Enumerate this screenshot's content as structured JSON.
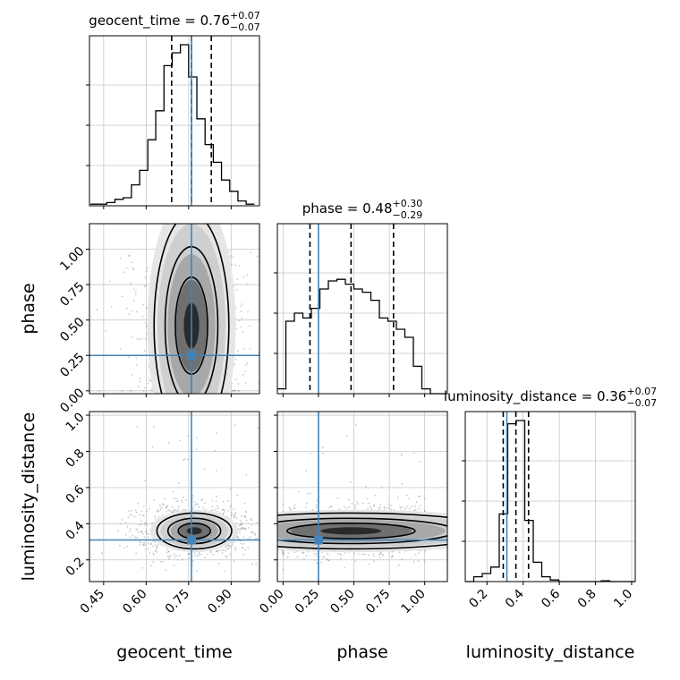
{
  "chart_data": {
    "type": "corner",
    "parameters": [
      "geocent_time",
      "phase",
      "luminosity_distance"
    ],
    "truths": {
      "geocent_time": 0.76,
      "phase": 0.25,
      "luminosity_distance": 0.31
    },
    "colors": {
      "truth": "#4682b4",
      "hist": "#000000",
      "grid": "#c8c8c8",
      "points": "#888888"
    },
    "grid": true,
    "marginals": [
      {
        "parameter": "geocent_time",
        "title_base": "geocent_time = 0.76",
        "title_plus": "+0.07",
        "title_minus": "−0.07",
        "xlim": [
          0.4,
          1.0
        ],
        "quantiles": [
          0.69,
          0.76,
          0.83
        ],
        "bin_edges": [
          0.403,
          0.432,
          0.461,
          0.49,
          0.519,
          0.548,
          0.577,
          0.606,
          0.634,
          0.663,
          0.692,
          0.721,
          0.75,
          0.779,
          0.808,
          0.837,
          0.866,
          0.895,
          0.924,
          0.953,
          0.982
        ],
        "counts": [
          0.01,
          0.01,
          0.02,
          0.04,
          0.05,
          0.13,
          0.22,
          0.41,
          0.59,
          0.87,
          0.95,
          1.0,
          0.8,
          0.54,
          0.38,
          0.27,
          0.16,
          0.09,
          0.03,
          0.01
        ]
      },
      {
        "parameter": "phase",
        "title_base": "phase = 0.48",
        "title_plus": "+0.30",
        "title_minus": "−0.29",
        "xlim": [
          -0.04,
          1.16
        ],
        "quantiles": [
          0.19,
          0.48,
          0.78
        ],
        "bin_edges": [
          -0.04,
          0.02,
          0.08,
          0.14,
          0.2,
          0.26,
          0.32,
          0.38,
          0.44,
          0.5,
          0.56,
          0.62,
          0.68,
          0.74,
          0.8,
          0.86,
          0.92,
          0.98,
          1.04,
          1.1,
          1.16
        ],
        "counts": [
          0.03,
          0.45,
          0.5,
          0.47,
          0.53,
          0.65,
          0.7,
          0.71,
          0.68,
          0.65,
          0.63,
          0.58,
          0.47,
          0.45,
          0.4,
          0.35,
          0.17,
          0.03,
          0.0,
          0.0
        ]
      },
      {
        "parameter": "luminosity_distance",
        "title_base": "luminosity_distance = 0.36",
        "title_plus": "+0.07",
        "title_minus": "−0.07",
        "xlim": [
          0.08,
          1.02
        ],
        "quantiles": [
          0.29,
          0.36,
          0.43
        ],
        "bin_edges": [
          0.08,
          0.127,
          0.174,
          0.221,
          0.268,
          0.315,
          0.362,
          0.409,
          0.456,
          0.503,
          0.55,
          0.597,
          0.644,
          0.691,
          0.738,
          0.785,
          0.832,
          0.879,
          0.926,
          0.973,
          1.02
        ],
        "counts": [
          0.0,
          0.03,
          0.05,
          0.09,
          0.42,
          0.98,
          1.0,
          0.38,
          0.12,
          0.03,
          0.01,
          0.0,
          0.0,
          0.0,
          0.0,
          0.0,
          0.005,
          0.0,
          0.0,
          0.0
        ]
      }
    ],
    "panels": [
      {
        "x": "geocent_time",
        "y": "phase",
        "center": [
          0.76,
          0.46
        ],
        "spread": [
          0.06,
          0.24
        ],
        "sample_count": 1100
      },
      {
        "x": "geocent_time",
        "y": "luminosity_distance",
        "center": [
          0.77,
          0.36
        ],
        "spread": [
          0.06,
          0.045
        ],
        "sample_count": 1100
      },
      {
        "x": "phase",
        "y": "luminosity_distance",
        "center": [
          0.48,
          0.36
        ],
        "spread": [
          0.28,
          0.045
        ],
        "sample_count": 1100
      }
    ],
    "axes": {
      "geocent_time": {
        "label": "geocent_time",
        "lim": [
          0.4,
          1.0
        ],
        "ticks": [
          0.45,
          0.6,
          0.75,
          0.9
        ],
        "tick_labels": [
          "0.45",
          "0.60",
          "0.75",
          "0.90"
        ]
      },
      "phase_x": {
        "label": "phase",
        "lim": [
          -0.04,
          1.16
        ],
        "ticks": [
          0.0,
          0.25,
          0.5,
          0.75,
          1.0
        ],
        "tick_labels": [
          "0.00",
          "0.25",
          "0.50",
          "0.75",
          "1.00"
        ]
      },
      "phase_y": {
        "label": "phase",
        "lim": [
          -0.02,
          1.18
        ],
        "ticks": [
          0.0,
          0.25,
          0.5,
          0.75,
          1.0
        ],
        "tick_labels": [
          "0.00",
          "0.25",
          "0.50",
          "0.75",
          "1.00"
        ]
      },
      "luminosity_distance_x": {
        "label": "luminosity_distance",
        "lim": [
          0.08,
          1.02
        ],
        "ticks": [
          0.2,
          0.4,
          0.6,
          0.8,
          1.0
        ],
        "tick_labels": [
          "0.2",
          "0.4",
          "0.6",
          "0.8",
          "1.0"
        ]
      },
      "luminosity_distance_y": {
        "label": "luminosity_distance",
        "lim": [
          0.08,
          1.02
        ],
        "ticks": [
          0.2,
          0.4,
          0.6,
          0.8,
          1.0
        ],
        "tick_labels": [
          "0.2",
          "0.4",
          "0.6",
          "0.8",
          "1.0"
        ]
      }
    }
  }
}
